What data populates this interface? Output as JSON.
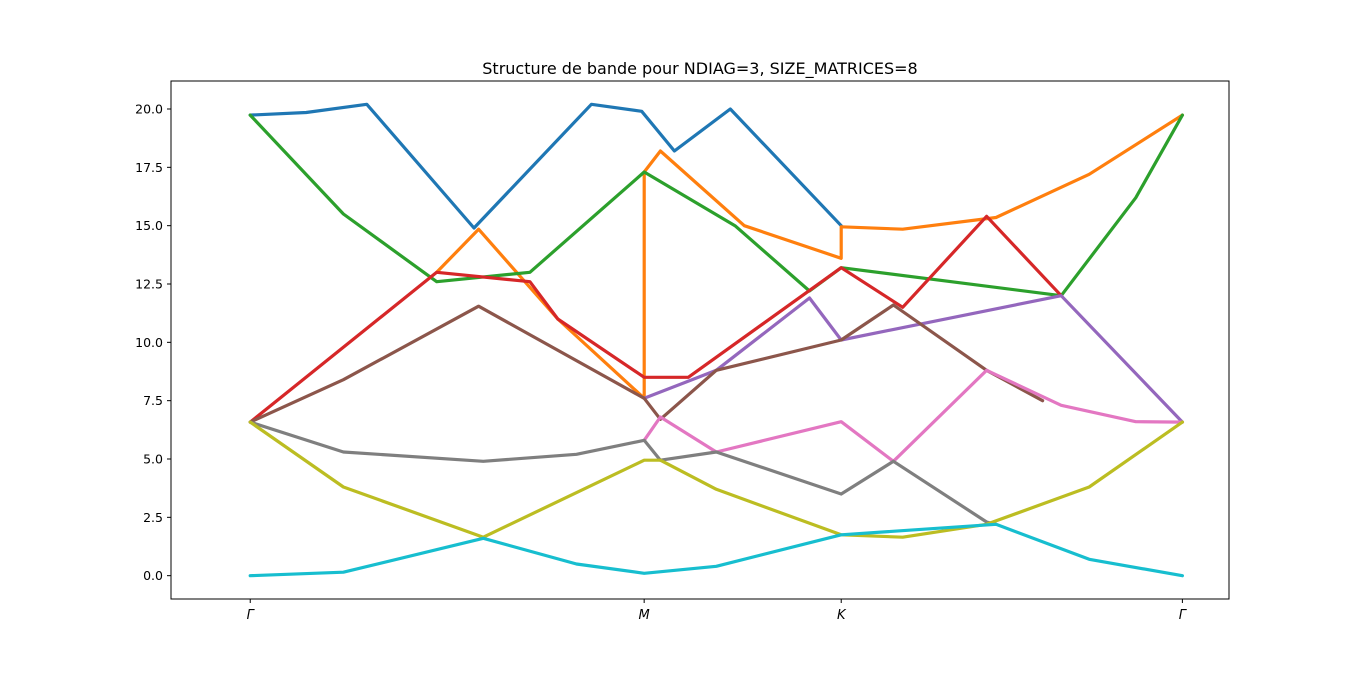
{
  "chart_data": {
    "type": "line",
    "title": "Structure de bande pour NDIAG=3, SIZE_MATRICES=8",
    "xlabel": "",
    "ylabel": "",
    "xlim": [
      -0.085,
      1.05
    ],
    "ylim": [
      -1.0,
      21.2
    ],
    "grid": false,
    "x_ticks": [
      {
        "pos": 0.0,
        "label": "Γ"
      },
      {
        "pos": 0.4226,
        "label": "M"
      },
      {
        "pos": 0.634,
        "label": "K"
      },
      {
        "pos": 1.0,
        "label": "Γ"
      }
    ],
    "y_ticks": [
      0.0,
      2.5,
      5.0,
      7.5,
      10.0,
      12.5,
      15.0,
      17.5,
      20.0
    ],
    "y_tick_labels": [
      "0.0",
      "2.5",
      "5.0",
      "7.5",
      "10.0",
      "12.5",
      "15.0",
      "17.5",
      "20.0"
    ],
    "series": [
      {
        "color": "#1f77b4",
        "points": [
          [
            0,
            19.74
          ],
          [
            0.06,
            19.85
          ],
          [
            0.125,
            20.2
          ],
          [
            0.24,
            14.9
          ],
          [
            0.366,
            20.2
          ],
          [
            0.42,
            19.9
          ],
          [
            0.455,
            18.2
          ],
          [
            0.515,
            20.0
          ],
          [
            0.634,
            15.0
          ]
        ]
      },
      {
        "color": "#ff7f0e",
        "points": [
          [
            0.2,
            13.0
          ],
          [
            0.245,
            14.85
          ],
          [
            0.33,
            11.0
          ],
          [
            0.4226,
            7.6
          ],
          [
            0.4226,
            17.3
          ],
          [
            0.44,
            18.2
          ],
          [
            0.53,
            15.0
          ],
          [
            0.634,
            13.6
          ],
          [
            0.634,
            14.95
          ],
          [
            0.7,
            14.85
          ],
          [
            0.8,
            15.35
          ],
          [
            0.9,
            17.2
          ],
          [
            1.0,
            19.74
          ]
        ]
      },
      {
        "color": "#2ca02c",
        "points": [
          [
            0,
            19.74
          ],
          [
            0.1,
            15.5
          ],
          [
            0.2,
            12.6
          ],
          [
            0.3,
            13.0
          ],
          [
            0.4226,
            17.3
          ],
          [
            0.52,
            15.0
          ],
          [
            0.6,
            12.2
          ],
          [
            0.634,
            13.2
          ],
          [
            0.87,
            12.0
          ],
          [
            0.95,
            16.2
          ],
          [
            1.0,
            19.74
          ]
        ]
      },
      {
        "color": "#d62728",
        "points": [
          [
            0,
            6.58
          ],
          [
            0.2,
            13.0
          ],
          [
            0.3,
            12.6
          ],
          [
            0.33,
            11.0
          ],
          [
            0.4226,
            8.5
          ],
          [
            0.47,
            8.5
          ],
          [
            0.634,
            13.2
          ],
          [
            0.7,
            11.5
          ],
          [
            0.79,
            15.4
          ],
          [
            0.87,
            12.0
          ]
        ]
      },
      {
        "color": "#9467bd",
        "points": [
          [
            0.4226,
            7.6
          ],
          [
            0.5,
            8.8
          ],
          [
            0.6,
            11.9
          ],
          [
            0.634,
            10.1
          ],
          [
            0.87,
            12.0
          ],
          [
            1.0,
            6.58
          ]
        ]
      },
      {
        "color": "#8c564b",
        "points": [
          [
            0,
            6.58
          ],
          [
            0.1,
            8.4
          ],
          [
            0.245,
            11.55
          ],
          [
            0.4226,
            7.6
          ],
          [
            0.44,
            6.7
          ],
          [
            0.5,
            8.8
          ],
          [
            0.634,
            10.1
          ],
          [
            0.69,
            11.6
          ],
          [
            0.79,
            8.8
          ],
          [
            0.85,
            7.5
          ]
        ]
      },
      {
        "color": "#e377c2",
        "points": [
          [
            0.4226,
            5.8
          ],
          [
            0.44,
            6.8
          ],
          [
            0.5,
            5.3
          ],
          [
            0.634,
            6.6
          ],
          [
            0.69,
            4.9
          ],
          [
            0.79,
            8.8
          ],
          [
            0.87,
            7.3
          ],
          [
            0.95,
            6.6
          ],
          [
            1.0,
            6.58
          ]
        ]
      },
      {
        "color": "#7f7f7f",
        "points": [
          [
            0,
            6.58
          ],
          [
            0.1,
            5.3
          ],
          [
            0.25,
            4.9
          ],
          [
            0.35,
            5.2
          ],
          [
            0.4226,
            5.8
          ],
          [
            0.44,
            4.95
          ],
          [
            0.5,
            5.3
          ],
          [
            0.634,
            3.5
          ],
          [
            0.69,
            4.9
          ],
          [
            0.79,
            2.3
          ],
          [
            0.8,
            2.2
          ]
        ]
      },
      {
        "color": "#bcbd22",
        "points": [
          [
            0,
            6.58
          ],
          [
            0.1,
            3.8
          ],
          [
            0.25,
            1.65
          ],
          [
            0.4226,
            4.95
          ],
          [
            0.44,
            4.95
          ],
          [
            0.5,
            3.7
          ],
          [
            0.634,
            1.75
          ],
          [
            0.7,
            1.65
          ],
          [
            0.79,
            2.2
          ],
          [
            0.9,
            3.8
          ],
          [
            1.0,
            6.58
          ]
        ]
      },
      {
        "color": "#17becf",
        "points": [
          [
            0,
            0.0
          ],
          [
            0.1,
            0.15
          ],
          [
            0.25,
            1.6
          ],
          [
            0.35,
            0.5
          ],
          [
            0.4226,
            0.1
          ],
          [
            0.5,
            0.4
          ],
          [
            0.634,
            1.75
          ],
          [
            0.8,
            2.2
          ],
          [
            0.9,
            0.7
          ],
          [
            1.0,
            0.0
          ]
        ]
      }
    ]
  }
}
